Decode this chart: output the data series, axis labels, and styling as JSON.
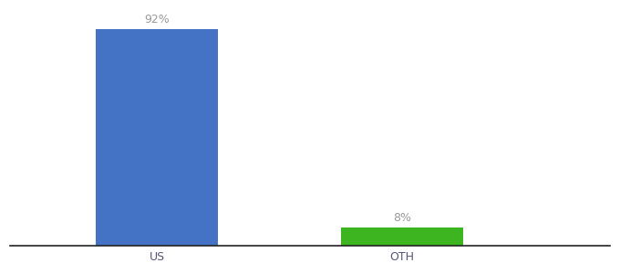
{
  "categories": [
    "US",
    "OTH"
  ],
  "values": [
    92,
    8
  ],
  "bar_colors": [
    "#4472C4",
    "#3CB521"
  ],
  "background_color": "#ffffff",
  "ylim": [
    0,
    100
  ],
  "bar_width": 0.5,
  "x_positions": [
    1,
    2
  ],
  "x_lim": [
    0.4,
    2.85
  ],
  "figsize": [
    6.8,
    3.0
  ],
  "dpi": 100,
  "label_fontsize": 9,
  "tick_fontsize": 9,
  "label_color": "#999999",
  "tick_color": "#555577",
  "spine_color": "#222222"
}
